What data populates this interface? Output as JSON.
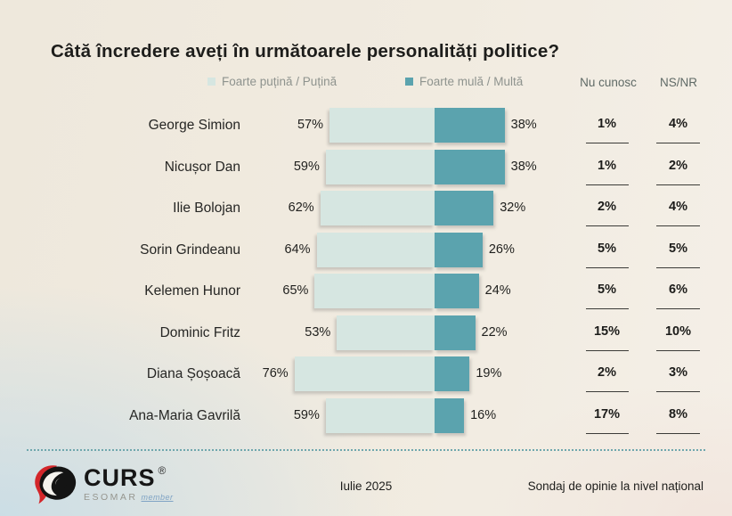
{
  "title": "Câtă încredere aveți în următoarele personalități politice?",
  "legend": {
    "negative": "Foarte puțină / Puțină",
    "positive": "Foarte mulă / Multă"
  },
  "columns": {
    "nu_cunosc": "Nu cunosc",
    "ns_nr": "NS/NR"
  },
  "rows": [
    {
      "name": "George Simion",
      "neg": "57%",
      "pos": "38%",
      "nu": "1%",
      "ns": "4%"
    },
    {
      "name": "Nicușor Dan",
      "neg": "59%",
      "pos": "38%",
      "nu": "1%",
      "ns": "2%"
    },
    {
      "name": "Ilie Bolojan",
      "neg": "62%",
      "pos": "32%",
      "nu": "2%",
      "ns": "4%"
    },
    {
      "name": "Sorin Grindeanu",
      "neg": "64%",
      "pos": "26%",
      "nu": "5%",
      "ns": "5%"
    },
    {
      "name": "Kelemen Hunor",
      "neg": "65%",
      "pos": "24%",
      "nu": "5%",
      "ns": "6%"
    },
    {
      "name": "Dominic Fritz",
      "neg": "53%",
      "pos": "22%",
      "nu": "15%",
      "ns": "10%"
    },
    {
      "name": "Diana Șoșoacă",
      "neg": "76%",
      "pos": "19%",
      "nu": "2%",
      "ns": "3%"
    },
    {
      "name": "Ana-Maria Gavrilă",
      "neg": "59%",
      "pos": "16%",
      "nu": "17%",
      "ns": "8%"
    }
  ],
  "footer": {
    "brand": "CURS",
    "brand_mark": "®",
    "brand_sub": "ESOMAR",
    "brand_sub_member": "member",
    "date": "Iulie 2025",
    "note": "Sondaj de opinie la nivel național"
  },
  "colors": {
    "negative_bar": "#d6e6e1",
    "positive_bar": "#5ba3ae",
    "dotted_line": "#6fa7ad",
    "brand_red": "#d3262a",
    "legend_text": "#8e938e"
  },
  "chart_data": {
    "type": "bar",
    "orientation": "horizontal",
    "title": "Câtă încredere aveți în următoarele personalități politice?",
    "unit": "%",
    "categories": [
      "George Simion",
      "Nicușor Dan",
      "Ilie Bolojan",
      "Sorin Grindeanu",
      "Kelemen Hunor",
      "Dominic Fritz",
      "Diana Șoșoacă",
      "Ana-Maria Gavrilă"
    ],
    "series": [
      {
        "name": "Foarte puțină / Puțină",
        "values": [
          57,
          59,
          62,
          64,
          65,
          53,
          76,
          59
        ],
        "color": "#d6e6e1",
        "direction": "left"
      },
      {
        "name": "Foarte mulă / Multă",
        "values": [
          38,
          38,
          32,
          26,
          24,
          22,
          19,
          16
        ],
        "color": "#5ba3ae",
        "direction": "right"
      },
      {
        "name": "Nu cunosc",
        "values": [
          1,
          1,
          2,
          5,
          5,
          15,
          2,
          17
        ]
      },
      {
        "name": "NS/NR",
        "values": [
          4,
          2,
          4,
          5,
          6,
          10,
          3,
          8
        ]
      }
    ],
    "legend_position": "top",
    "grid": false
  }
}
